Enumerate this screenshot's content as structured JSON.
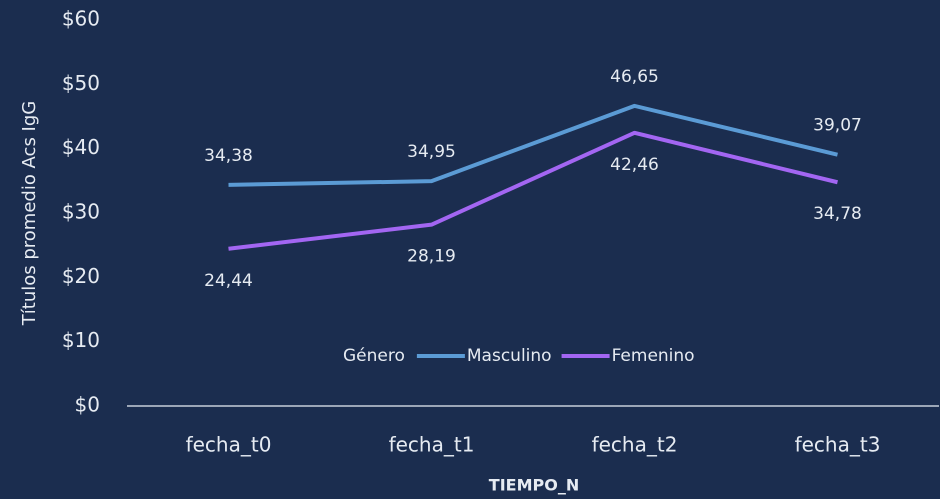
{
  "chart_data": {
    "type": "line",
    "x_label": "TIEMPO_N",
    "y_label": "Títulos promedio Acs IgG",
    "categories": [
      "fecha_t0",
      "fecha_t1",
      "fecha_t2",
      "fecha_t3"
    ],
    "legend_title": "Género",
    "series": [
      {
        "name": "Masculino",
        "color": "#5b9bd5",
        "values": [
          34.38,
          34.95,
          46.65,
          39.07
        ],
        "value_labels": [
          "34,38",
          "34,95",
          "46,65",
          "39,07"
        ]
      },
      {
        "name": "Femenino",
        "color": "#a366f2",
        "values": [
          24.44,
          28.19,
          42.46,
          34.78
        ],
        "value_labels": [
          "24,44",
          "28,19",
          "42,46",
          "34,78"
        ]
      }
    ],
    "ylim": [
      0,
      60
    ],
    "yticks": [
      {
        "value": 0,
        "label": "$0"
      },
      {
        "value": 10,
        "label": "$10"
      },
      {
        "value": 20,
        "label": "$20"
      },
      {
        "value": 30,
        "label": "$30"
      },
      {
        "value": 40,
        "label": "$40"
      },
      {
        "value": 50,
        "label": "$50"
      },
      {
        "value": 60,
        "label": "$60"
      }
    ],
    "grid": false,
    "legend_position": "bottom"
  }
}
